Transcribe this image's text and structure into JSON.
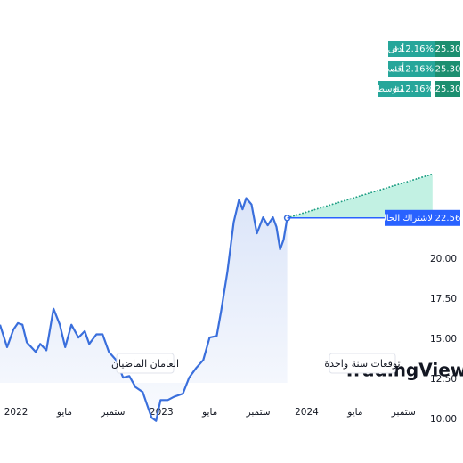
{
  "chart_data": {
    "type": "line",
    "series": [
      {
        "name": null,
        "color": "#3a6fdc",
        "x": [
          -1.33,
          -0.74,
          -0.22,
          0.15,
          0.52,
          0.88,
          1.62,
          1.99,
          2.5,
          3.09,
          3.61,
          4.05,
          4.57,
          5.15,
          5.67,
          6.04,
          6.63,
          7.14,
          7.66,
          8.25,
          8.84,
          9.35,
          9.87,
          10.46,
          10.82,
          11.19,
          11.56,
          11.93,
          12.52,
          13.03,
          13.77,
          14.29,
          14.87,
          15.46,
          15.98,
          16.57,
          16.94,
          17.45,
          17.97,
          18.41,
          18.7,
          19.0,
          19.44,
          19.88,
          20.4,
          20.77,
          21.21,
          21.5,
          21.8,
          22.09,
          22.39
        ],
        "values": [
          15.9,
          14.5,
          15.6,
          16.0,
          15.9,
          14.8,
          14.2,
          14.7,
          14.3,
          16.9,
          15.9,
          14.5,
          15.9,
          15.1,
          15.5,
          14.7,
          15.3,
          15.3,
          14.2,
          13.7,
          12.6,
          12.7,
          12.0,
          11.7,
          10.9,
          10.1,
          9.9,
          11.2,
          11.2,
          11.4,
          11.6,
          12.6,
          13.2,
          13.7,
          15.1,
          15.2,
          16.8,
          19.2,
          22.3,
          23.7,
          23.1,
          23.8,
          23.4,
          21.6,
          22.6,
          22.1,
          22.6,
          22.0,
          20.6,
          21.2,
          22.56
        ]
      }
    ],
    "xlim": [
      -1.33,
      34.7
    ],
    "xticks": [
      {
        "value": 0,
        "label": "2022"
      },
      {
        "value": 4,
        "label": "مايو"
      },
      {
        "value": 8,
        "label": "ستمبر"
      },
      {
        "value": 12,
        "label": "2023"
      },
      {
        "value": 16,
        "label": "مايو"
      },
      {
        "value": 20,
        "label": "ستمبر"
      },
      {
        "value": 24,
        "label": "2024"
      },
      {
        "value": 28,
        "label": "مايو"
      },
      {
        "value": 32,
        "label": "ستمبر"
      }
    ],
    "ylim": [
      7.27,
      36.16
    ],
    "yticks": [
      {
        "value": 10,
        "label": "10.00"
      },
      {
        "value": 12.5,
        "label": "12.50"
      },
      {
        "value": 15,
        "label": "15.00"
      },
      {
        "value": 17.5,
        "label": "17.50"
      },
      {
        "value": 20,
        "label": "20.00"
      }
    ],
    "current": {
      "label": "لاشتراك الحالي",
      "value": 22.56,
      "value_label": "22.56"
    },
    "forecast": {
      "x": 34.39,
      "items": [
        {
          "name": "أدنى",
          "change": "+12.16%",
          "value": 25.3,
          "value_label": "25.30"
        },
        {
          "name": "أقصى",
          "change": "+12.16%",
          "value": 25.3,
          "value_label": "25.30"
        },
        {
          "name": "متوسط",
          "change": "+12.16%",
          "value": 25.3,
          "value_label": "25.30"
        }
      ]
    },
    "buttons": [
      "العامان الماضيان",
      "توقعات سنة واحدة"
    ],
    "watermark": "TradingView"
  }
}
